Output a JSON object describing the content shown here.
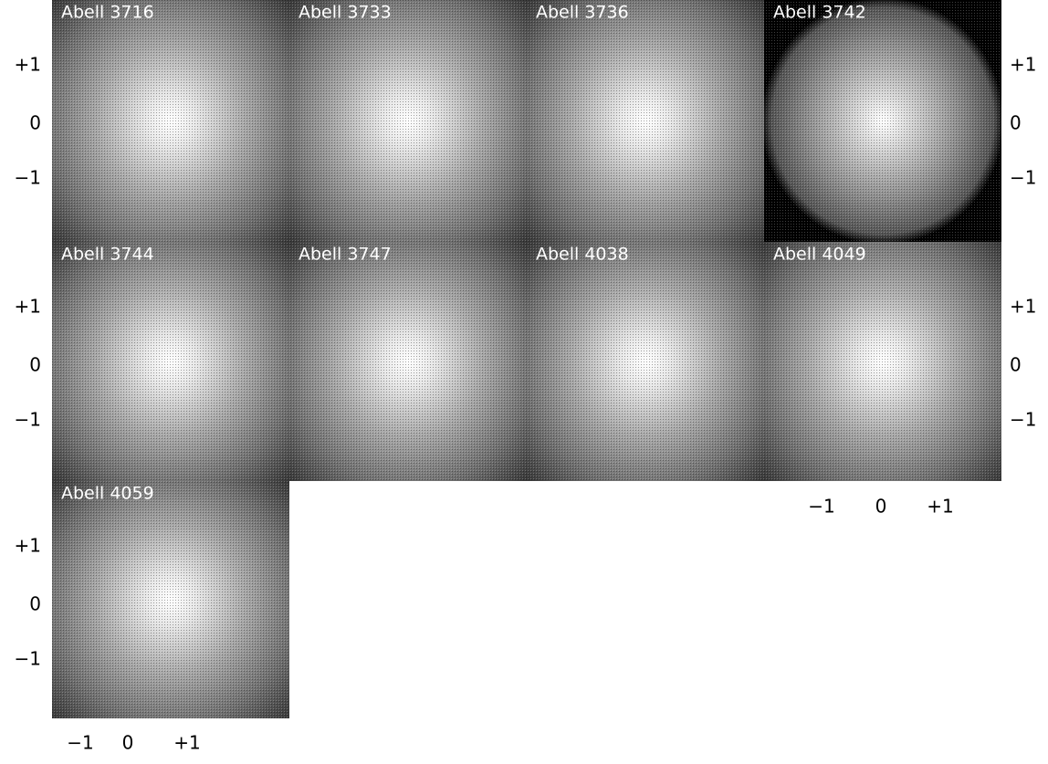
{
  "panels": [
    {
      "label": "Abell 3716"
    },
    {
      "label": "Abell 3733"
    },
    {
      "label": "Abell 3736"
    },
    {
      "label": "Abell 3742"
    },
    {
      "label": "Abell 3744"
    },
    {
      "label": "Abell 3747"
    },
    {
      "label": "Abell 4038"
    },
    {
      "label": "Abell 4049"
    },
    {
      "label": "Abell 4059"
    }
  ],
  "axis_labels": {
    "y": [
      "+1",
      "0",
      "−1"
    ],
    "x": [
      "−1",
      "0",
      "+1"
    ]
  }
}
